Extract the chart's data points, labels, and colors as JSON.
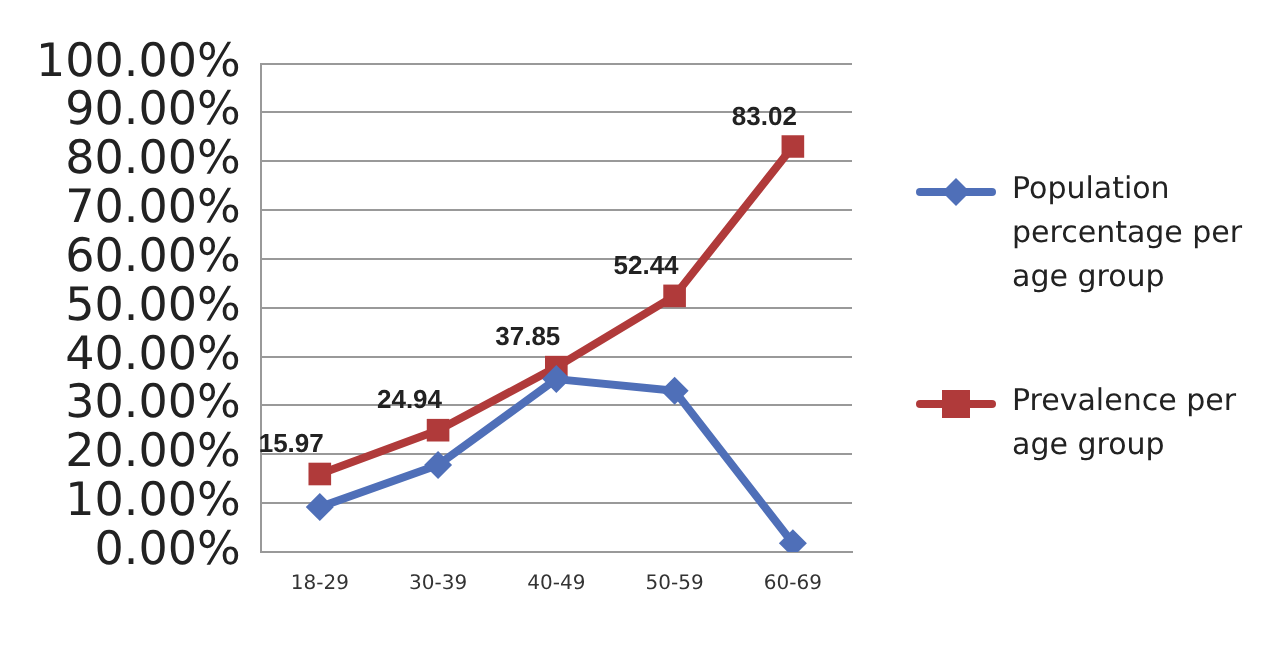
{
  "chart_data": {
    "type": "line",
    "categories": [
      "18-29",
      "30-39",
      "40-49",
      "50-59",
      "60-69"
    ],
    "series": [
      {
        "name": "Population percentage per age group",
        "color": "#4f6fb8",
        "marker": "diamond",
        "values": [
          9.2,
          17.8,
          35.4,
          33,
          1.8
        ]
      },
      {
        "name": "Prevalence per age group",
        "color": "#b03a3a",
        "marker": "square",
        "values": [
          15.97,
          24.94,
          37.85,
          52.44,
          83.02
        ],
        "value_labels": [
          "15.97",
          "24.94",
          "37.85",
          "52.44",
          "83.02"
        ]
      }
    ],
    "ylim": [
      0,
      100
    ],
    "yticks": [
      {
        "value": 0,
        "label": "0.00%"
      },
      {
        "value": 10,
        "label": "10.00%"
      },
      {
        "value": 20,
        "label": "20.00%"
      },
      {
        "value": 30,
        "label": "30.00%"
      },
      {
        "value": 40,
        "label": "40.00%"
      },
      {
        "value": 50,
        "label": "50.00%"
      },
      {
        "value": 60,
        "label": "60.00%"
      },
      {
        "value": 70,
        "label": "70.00%"
      },
      {
        "value": 80,
        "label": "80.00%"
      },
      {
        "value": 90,
        "label": "90.00%"
      },
      {
        "value": 100,
        "label": "100.00%"
      }
    ],
    "grid": "y",
    "legend": "right",
    "line_style": "solid"
  }
}
